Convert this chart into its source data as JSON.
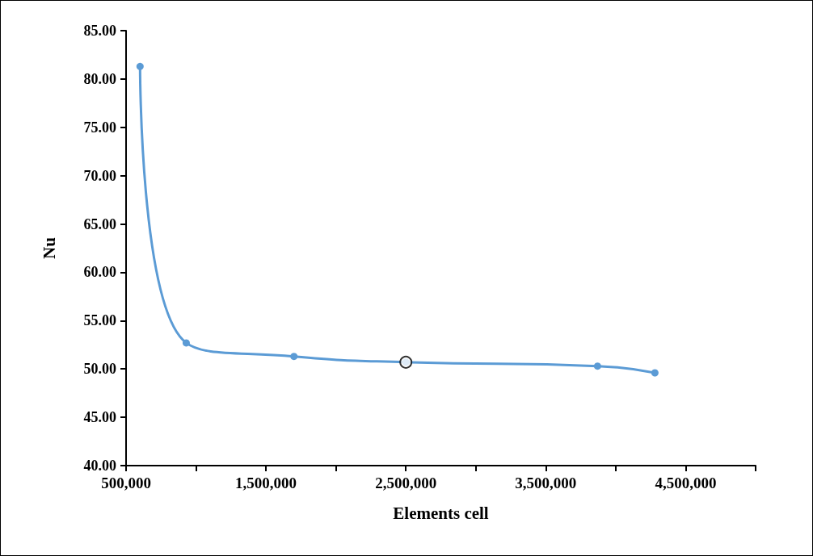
{
  "chart_data": {
    "type": "line",
    "xlabel": "Elements cell",
    "ylabel": "Nu",
    "xlim": [
      500000,
      5000000
    ],
    "xticks": [
      {
        "value": 500000,
        "label": "500,000"
      },
      {
        "value": 1000000,
        "label": null
      },
      {
        "value": 1500000,
        "label": "1,500,000"
      },
      {
        "value": 2000000,
        "label": null
      },
      {
        "value": 2500000,
        "label": "2,500,000"
      },
      {
        "value": 3000000,
        "label": null
      },
      {
        "value": 3500000,
        "label": "3,500,000"
      },
      {
        "value": 4000000,
        "label": null
      },
      {
        "value": 4500000,
        "label": "4,500,000"
      },
      {
        "value": 5000000,
        "label": null
      }
    ],
    "ylim": [
      40,
      85
    ],
    "yticks": [
      {
        "value": 40,
        "label": "40.00"
      },
      {
        "value": 45,
        "label": "45.00"
      },
      {
        "value": 50,
        "label": "50.00"
      },
      {
        "value": 55,
        "label": "55.00"
      },
      {
        "value": 60,
        "label": "60.00"
      },
      {
        "value": 65,
        "label": "65.00"
      },
      {
        "value": 70,
        "label": "70.00"
      },
      {
        "value": 75,
        "label": "75.00"
      },
      {
        "value": 80,
        "label": "80.00"
      },
      {
        "value": 85,
        "label": "85.00"
      }
    ],
    "grid": false,
    "marker": "circle",
    "line_style": "solid",
    "series": [
      {
        "type": "line",
        "color": "#5b9bd5",
        "x": [
          600000,
          930000,
          1700000,
          2500000,
          3870000,
          4280000
        ],
        "values": [
          81.3,
          52.7,
          51.3,
          50.7,
          50.3,
          49.6
        ]
      },
      {
        "type": "scatter",
        "color": "#000000",
        "x": [
          2500000
        ],
        "values": [
          50.7
        ]
      }
    ]
  }
}
